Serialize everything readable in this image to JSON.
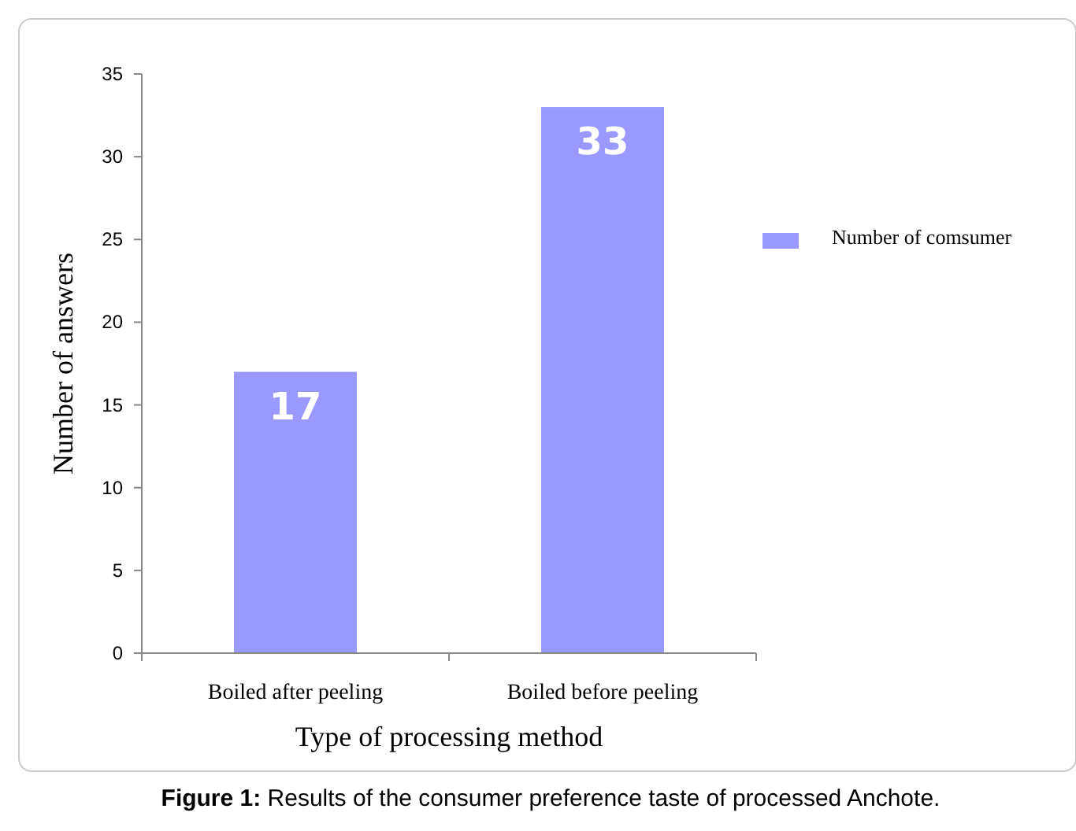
{
  "chart_data": {
    "type": "bar",
    "xlabel": "Type of processing method",
    "ylabel": "Number of answers",
    "categories": [
      "Boiled after peeling",
      "Boiled before peeling"
    ],
    "series": [
      {
        "name": "Number of comsumer",
        "color": "#9999ff",
        "values": [
          17,
          33
        ]
      }
    ],
    "ylim": [
      0,
      35
    ],
    "yticks": [
      0,
      5,
      10,
      15,
      20,
      25,
      30,
      35
    ],
    "grid": false,
    "legend": "right",
    "data_labels": true,
    "annotations": [
      "Figure 1: Results of the consumer preference taste of processed Anchote."
    ]
  }
}
